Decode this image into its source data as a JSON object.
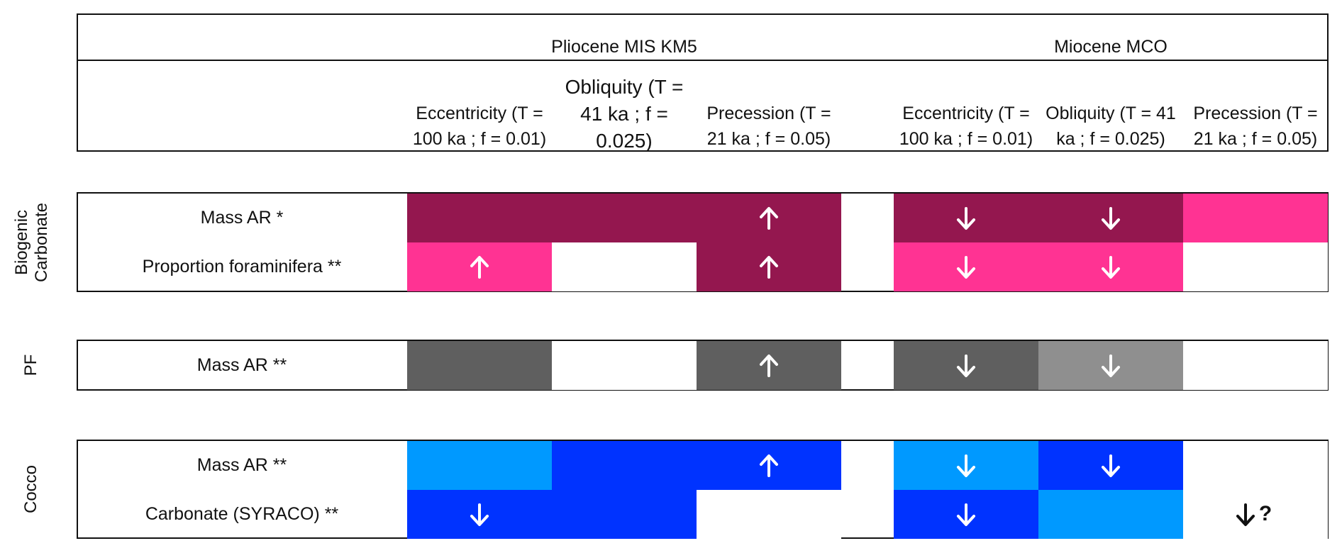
{
  "header": {
    "periods": [
      "Pliocene MIS KM5",
      "Miocene MCO"
    ],
    "columns": [
      "Eccentricity (T =\n100 ka ; f = 0.01)",
      "Obliquity (T =\n41 ka ; f =\n0.025)",
      "Precession (T =\n21 ka ; f = 0.05)",
      "Eccentricity (T =\n100 ka ; f = 0.01)",
      "Obliquity (T = 41\nka ; f = 0.025)",
      "Precession (T =\n21 ka ; f = 0.05)"
    ]
  },
  "groups": [
    {
      "label": "Biogenic\nCarbonate",
      "rows": [
        {
          "label": "Mass AR *",
          "cells": [
            {
              "color": "#94174f",
              "arrow": ""
            },
            {
              "color": "#94174f",
              "arrow": ""
            },
            {
              "color": "#94174f",
              "arrow": "up"
            },
            {
              "color": "#94174f",
              "arrow": "down"
            },
            {
              "color": "#94174f",
              "arrow": "down"
            },
            {
              "color": "#ff3393",
              "arrow": ""
            }
          ]
        },
        {
          "label": "Proportion foraminifera **",
          "cells": [
            {
              "color": "#ff3393",
              "arrow": "up"
            },
            {
              "color": "#ffffff",
              "arrow": ""
            },
            {
              "color": "#94174f",
              "arrow": "up"
            },
            {
              "color": "#ff3393",
              "arrow": "down"
            },
            {
              "color": "#ff3393",
              "arrow": "down"
            },
            {
              "color": "#ffffff",
              "arrow": ""
            }
          ]
        }
      ]
    },
    {
      "label": "PF",
      "rows": [
        {
          "label": "Mass AR **",
          "cells": [
            {
              "color": "#5f5f5f",
              "arrow": ""
            },
            {
              "color": "#ffffff",
              "arrow": ""
            },
            {
              "color": "#5f5f5f",
              "arrow": "up"
            },
            {
              "color": "#5f5f5f",
              "arrow": "down"
            },
            {
              "color": "#8f8f8f",
              "arrow": "down"
            },
            {
              "color": "#ffffff",
              "arrow": ""
            }
          ]
        }
      ]
    },
    {
      "label": "Cocco",
      "rows": [
        {
          "label": "Mass AR **",
          "cells": [
            {
              "color": "#0099ff",
              "arrow": ""
            },
            {
              "color": "#0033ff",
              "arrow": ""
            },
            {
              "color": "#0033ff",
              "arrow": "up"
            },
            {
              "color": "#0099ff",
              "arrow": "down"
            },
            {
              "color": "#0033ff",
              "arrow": "down"
            },
            {
              "color": "#ffffff",
              "arrow": ""
            }
          ]
        },
        {
          "label": "Carbonate (SYRACO) **",
          "cells": [
            {
              "color": "#0033ff",
              "arrow": "down"
            },
            {
              "color": "#0033ff",
              "arrow": ""
            },
            {
              "color": "#ffffff",
              "arrow": ""
            },
            {
              "color": "#0033ff",
              "arrow": "down"
            },
            {
              "color": "#0099ff",
              "arrow": ""
            },
            {
              "color": "#ffffff",
              "arrow": "down-q"
            }
          ]
        }
      ]
    }
  ],
  "question_mark": "?"
}
